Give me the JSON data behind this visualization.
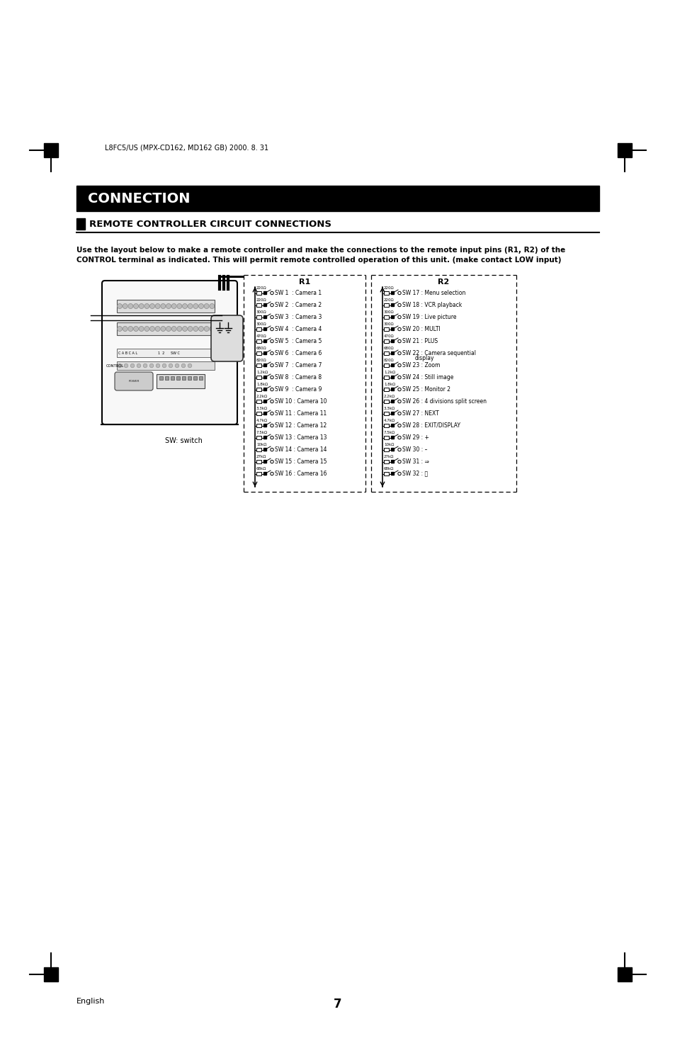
{
  "page_header": "L8FC5/US (MPX-CD162, MD162 GB) 2000. 8. 31",
  "title": "CONNECTION",
  "section_title": "REMOTE CONTROLLER CIRCUIT CONNECTIONS",
  "description_line1": "Use the layout below to make a remote controller and make the connections to the remote input pins (R1, R2) of the",
  "description_line2": "CONTROL terminal as indicated. This will permit remote controlled operation of this unit. (make contact LOW input)",
  "sw_label": "SW: switch",
  "r1_label": "R1",
  "r2_label": "R2",
  "r1_items": [
    {
      "res": "220Ω",
      "label": "SW 1  : Camera 1"
    },
    {
      "res": "220Ω",
      "label": "SW 2  : Camera 2"
    },
    {
      "res": "300Ω",
      "label": "SW 3  : Camera 3"
    },
    {
      "res": "300Ω",
      "label": "SW 4  : Camera 4"
    },
    {
      "res": "470Ω",
      "label": "SW 5  : Camera 5"
    },
    {
      "res": "680Ω",
      "label": "SW 6  : Camera 6"
    },
    {
      "res": "820Ω",
      "label": "SW 7  : Camera 7"
    },
    {
      "res": "1.2kΩ",
      "label": "SW 8  : Camera 8"
    },
    {
      "res": "1.8kΩ",
      "label": "SW 9  : Camera 9"
    },
    {
      "res": "2.2kΩ",
      "label": "SW 10 : Camera 10"
    },
    {
      "res": "3.3kΩ",
      "label": "SW 11 : Camera 11"
    },
    {
      "res": "4.7kΩ",
      "label": "SW 12 : Camera 12"
    },
    {
      "res": "7.5kΩ",
      "label": "SW 13 : Camera 13"
    },
    {
      "res": "10kΩ",
      "label": "SW 14 : Camera 14"
    },
    {
      "res": "27kΩ",
      "label": "SW 15 : Camera 15"
    },
    {
      "res": "68kΩ",
      "label": "SW 16 : Camera 16"
    }
  ],
  "r2_items": [
    {
      "res": "220Ω",
      "label": "SW 17 : Menu selection"
    },
    {
      "res": "220Ω",
      "label": "SW 18 : VCR playback"
    },
    {
      "res": "300Ω",
      "label": "SW 19 : Live picture"
    },
    {
      "res": "300Ω",
      "label": "SW 20 : MULTI"
    },
    {
      "res": "470Ω",
      "label": "SW 21 : PLUS"
    },
    {
      "res": "680Ω",
      "label": "SW 22 : Camera sequential"
    },
    {
      "res": "820Ω",
      "label": "SW 23 : Zoom",
      "extra": "display"
    },
    {
      "res": "1.2kΩ",
      "label": "SW 24 : Still image"
    },
    {
      "res": "1.8kΩ",
      "label": "SW 25 : Monitor 2"
    },
    {
      "res": "2.2kΩ",
      "label": "SW 26 : 4 divisions split screen"
    },
    {
      "res": "3.3kΩ",
      "label": "SW 27 : NEXT"
    },
    {
      "res": "4.7kΩ",
      "label": "SW 28 : EXIT/DISPLAY"
    },
    {
      "res": "7.5kΩ",
      "label": "SW 29 : +"
    },
    {
      "res": "10kΩ",
      "label": "SW 30 : –"
    },
    {
      "res": "27kΩ",
      "label": "SW 31 : ⇒"
    },
    {
      "res": "68kΩ",
      "label": "SW 32 : ⏮"
    }
  ],
  "page_number": "7",
  "footer_label": "English",
  "bg_color": "#ffffff",
  "title_bg": "#000000",
  "title_fg": "#ffffff"
}
